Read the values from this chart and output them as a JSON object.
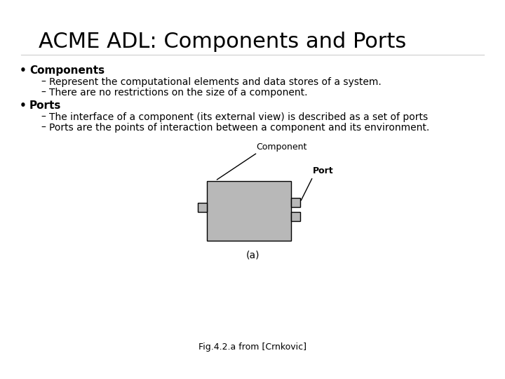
{
  "title": "ACME ADL: Components and Ports",
  "title_fontsize": 22,
  "background_color": "#ffffff",
  "text_color": "#000000",
  "bullet1_bold": "Components",
  "bullet1_sub1": "Represent the computational elements and data stores of a system.",
  "bullet1_sub2": "There are no restrictions on the size of a component.",
  "bullet2_bold": "Ports",
  "bullet2_sub1": "The interface of a component (its external view) is described as a set of ports",
  "bullet2_sub2": "Ports are the points of interaction between a component and its environment.",
  "fig_caption": "(a)",
  "fig_credit": "Fig.4.2.a from [Crnkovic]",
  "component_label": "Component",
  "port_label": "Port",
  "box_color": "#b8b8b8",
  "port_color": "#b8b8b8",
  "bullet_fontsize": 11,
  "sub_fontsize": 10,
  "credit_fontsize": 9,
  "caption_fontsize": 10
}
